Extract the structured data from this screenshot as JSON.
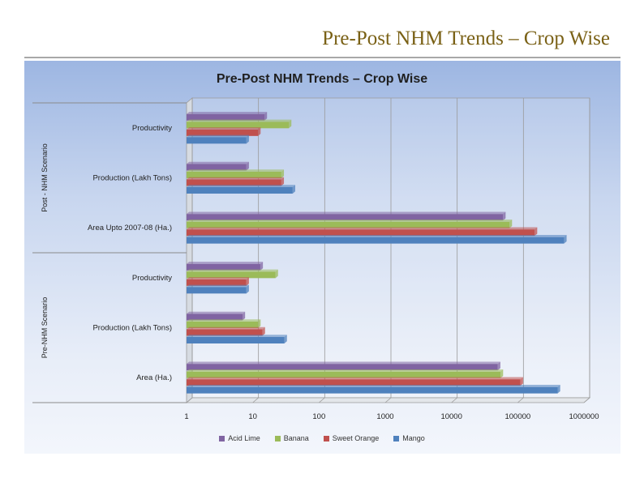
{
  "slide": {
    "title": "Pre-Post NHM Trends – Crop Wise"
  },
  "chart_data": {
    "type": "bar",
    "orientation": "horizontal",
    "scale": "log",
    "title": "Pre-Post NHM Trends – Crop Wise",
    "xlim": [
      1,
      1000000
    ],
    "xticks": [
      "1",
      "10",
      "100",
      "1000",
      "10000",
      "100000",
      "1000000"
    ],
    "groups": [
      {
        "label": "Post - NHM Scenario",
        "categories": [
          "Productivity",
          "Production  (Lakh Tons)",
          "Area Upto 2007-08 (Ha.)"
        ]
      },
      {
        "label": "Pre-NHM Scenario",
        "categories": [
          "Productivity",
          "Production  (Lakh Tons)",
          "Area (Ha.)"
        ]
      }
    ],
    "series": [
      {
        "name": "Acid Lime",
        "color": "#8064a2",
        "values": [
          15,
          8,
          60000,
          13,
          7,
          50000
        ]
      },
      {
        "name": "Banana",
        "color": "#9bbb59",
        "values": [
          35,
          27,
          75000,
          22,
          12,
          55000
        ]
      },
      {
        "name": "Sweet Orange",
        "color": "#c0504d",
        "values": [
          12,
          27,
          180000,
          8,
          14,
          110000
        ]
      },
      {
        "name": "Mango",
        "color": "#4f81bd",
        "values": [
          8,
          40,
          500000,
          8,
          30,
          400000
        ]
      }
    ]
  }
}
